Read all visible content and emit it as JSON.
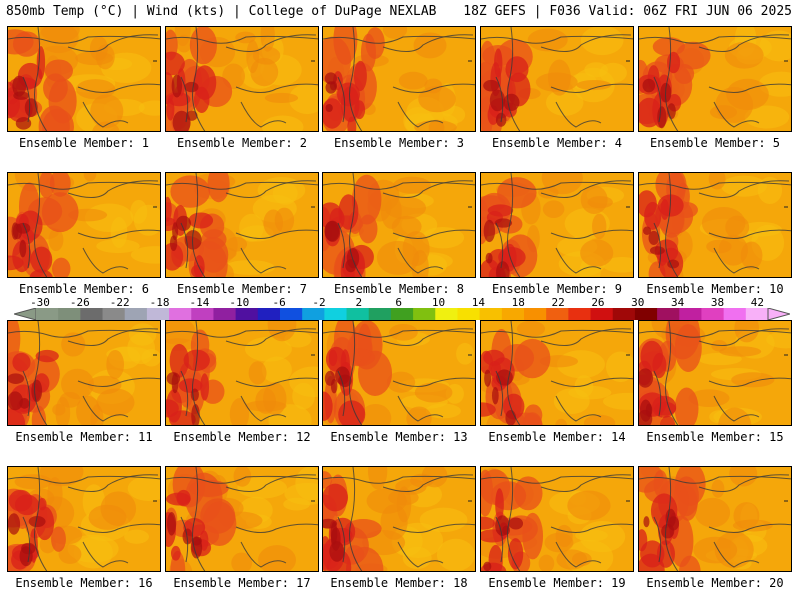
{
  "header": {
    "left": "850mb Temp (°C) | Wind (kts) | College of DuPage NEXLAB",
    "right": "18Z GEFS | F036 Valid: 06Z FRI JUN 06 2025"
  },
  "panels": [
    {
      "label": "Ensemble Member: 1",
      "seed": 1
    },
    {
      "label": "Ensemble Member: 2",
      "seed": 2
    },
    {
      "label": "Ensemble Member: 3",
      "seed": 3
    },
    {
      "label": "Ensemble Member: 4",
      "seed": 4
    },
    {
      "label": "Ensemble Member: 5",
      "seed": 5
    },
    {
      "label": "Ensemble Member: 6",
      "seed": 6
    },
    {
      "label": "Ensemble Member: 7",
      "seed": 7
    },
    {
      "label": "Ensemble Member: 8",
      "seed": 8
    },
    {
      "label": "Ensemble Member: 9",
      "seed": 9
    },
    {
      "label": "Ensemble Member: 10",
      "seed": 10
    },
    {
      "label": "Ensemble Member: 11",
      "seed": 11
    },
    {
      "label": "Ensemble Member: 12",
      "seed": 12
    },
    {
      "label": "Ensemble Member: 13",
      "seed": 13
    },
    {
      "label": "Ensemble Member: 14",
      "seed": 14
    },
    {
      "label": "Ensemble Member: 15",
      "seed": 15
    },
    {
      "label": "Ensemble Member: 16",
      "seed": 16
    },
    {
      "label": "Ensemble Member: 17",
      "seed": 17
    },
    {
      "label": "Ensemble Member: 18",
      "seed": 18
    },
    {
      "label": "Ensemble Member: 19",
      "seed": 19
    },
    {
      "label": "Ensemble Member: 20",
      "seed": 20
    }
  ],
  "scale": {
    "ticks": [
      "-30",
      "-26",
      "-22",
      "-18",
      "-14",
      "-10",
      "-6",
      "-2",
      "2",
      "6",
      "10",
      "14",
      "18",
      "22",
      "26",
      "30",
      "34",
      "38",
      "42"
    ],
    "colors": [
      "#8a9a86",
      "#7e8f7a",
      "#6c6c6c",
      "#8a8a8a",
      "#9ea4b4",
      "#c0b8d8",
      "#e070e0",
      "#c040c0",
      "#9020a0",
      "#5010a0",
      "#2020c0",
      "#1050e0",
      "#10a0e0",
      "#10d0e0",
      "#10c0a0",
      "#20a060",
      "#40a020",
      "#80c010",
      "#f0f010",
      "#f8e000",
      "#f8c000",
      "#f8a800",
      "#f89000",
      "#f06010",
      "#e83010",
      "#d01010",
      "#a00808",
      "#800000",
      "#a01060",
      "#c020a0",
      "#e040c0",
      "#f070f0",
      "#f8b0f8"
    ]
  },
  "map_colors": {
    "base": "#f5a70a",
    "light": "#f8c010",
    "warm": "#f08a0a",
    "hot": "#e8501a",
    "hotter": "#d8201a",
    "hottest": "#a80e0e",
    "outline": "#3a3a3a"
  }
}
